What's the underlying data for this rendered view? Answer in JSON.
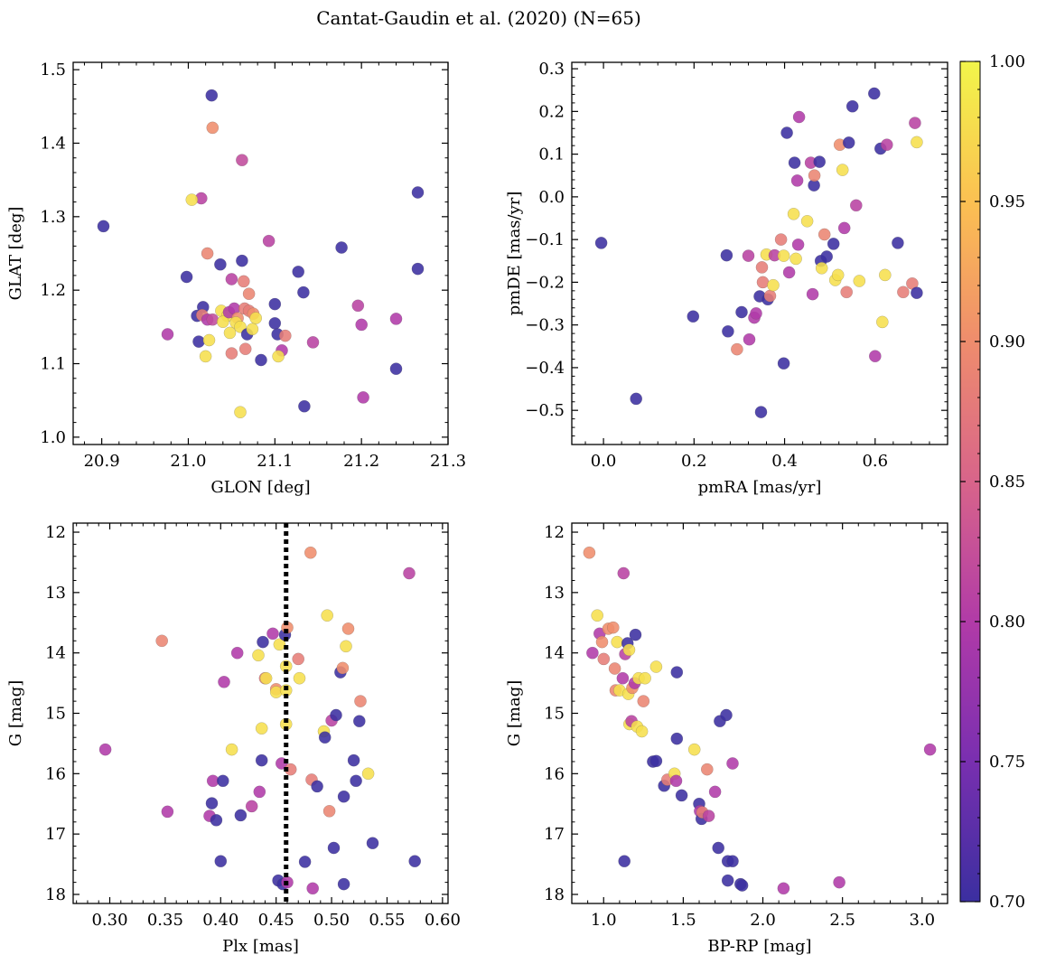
{
  "title": "Cantat-Gaudin et al. (2020) (N=65)",
  "colorbar": {
    "min": 0.7,
    "max": 1.0,
    "ticks": [
      "0.70",
      "0.75",
      "0.80",
      "0.85",
      "0.90",
      "0.95",
      "1.00"
    ],
    "colormap": [
      "#3b2fa0",
      "#7a2fb0",
      "#b03aa8",
      "#d8648a",
      "#ef8d6c",
      "#fbbf52",
      "#f2f54a"
    ]
  },
  "chart_data": [
    {
      "type": "scatter",
      "xlabel": "GLON [deg]",
      "ylabel": "GLAT [deg]",
      "xlim": [
        20.867,
        21.3
      ],
      "ylim": [
        0.99,
        1.51
      ],
      "xticks": [
        "20.9",
        "21.0",
        "21.1",
        "21.2",
        "21.3"
      ],
      "yticks": [
        "1.0",
        "1.1",
        "1.2",
        "1.3",
        "1.4",
        "1.5"
      ],
      "points": [
        [
          20.902,
          1.287,
          0.7
        ],
        [
          21.027,
          1.465,
          0.7
        ],
        [
          21.028,
          1.421,
          0.9
        ],
        [
          21.062,
          1.377,
          0.82
        ],
        [
          21.015,
          1.325,
          0.81
        ],
        [
          21.004,
          1.323,
          0.98
        ],
        [
          20.998,
          1.218,
          0.7
        ],
        [
          21.037,
          1.235,
          0.7
        ],
        [
          21.062,
          1.24,
          0.7
        ],
        [
          21.022,
          1.25,
          0.89
        ],
        [
          21.093,
          1.267,
          0.81
        ],
        [
          21.05,
          1.215,
          0.81
        ],
        [
          21.064,
          1.212,
          0.88
        ],
        [
          21.017,
          1.177,
          0.7
        ],
        [
          21.07,
          1.195,
          0.89
        ],
        [
          21.127,
          1.225,
          0.7
        ],
        [
          21.133,
          1.197,
          0.7
        ],
        [
          21.1,
          1.181,
          0.7
        ],
        [
          21.01,
          1.165,
          0.7
        ],
        [
          21.016,
          1.166,
          0.88
        ],
        [
          21.022,
          1.16,
          0.8
        ],
        [
          21.028,
          1.16,
          0.82
        ],
        [
          21.038,
          1.172,
          0.98
        ],
        [
          21.045,
          1.165,
          0.98
        ],
        [
          21.04,
          1.157,
          0.98
        ],
        [
          21.047,
          1.17,
          0.8
        ],
        [
          21.053,
          1.175,
          0.8
        ],
        [
          21.057,
          1.162,
          0.9
        ],
        [
          21.055,
          1.156,
          0.98
        ],
        [
          21.06,
          1.15,
          0.98
        ],
        [
          21.065,
          1.175,
          0.88
        ],
        [
          21.07,
          1.172,
          0.88
        ],
        [
          21.075,
          1.168,
          0.9
        ],
        [
          21.078,
          1.162,
          0.98
        ],
        [
          21.068,
          1.14,
          0.7
        ],
        [
          21.074,
          1.147,
          0.98
        ],
        [
          21.048,
          1.142,
          0.98
        ],
        [
          21.012,
          1.13,
          0.7
        ],
        [
          21.024,
          1.132,
          0.98
        ],
        [
          21.02,
          1.11,
          0.98
        ],
        [
          21.05,
          1.114,
          0.88
        ],
        [
          21.066,
          1.12,
          0.88
        ],
        [
          21.084,
          1.105,
          0.7
        ],
        [
          21.1,
          1.155,
          0.7
        ],
        [
          21.103,
          1.14,
          0.7
        ],
        [
          21.108,
          1.118,
          0.8
        ],
        [
          21.112,
          1.138,
          0.88
        ],
        [
          21.104,
          1.11,
          0.98
        ],
        [
          21.144,
          1.129,
          0.81
        ],
        [
          21.134,
          1.042,
          0.7
        ],
        [
          21.06,
          1.034,
          0.98
        ],
        [
          20.976,
          1.14,
          0.8
        ],
        [
          21.177,
          1.258,
          0.7
        ],
        [
          21.196,
          1.179,
          0.81
        ],
        [
          21.2,
          1.153,
          0.8
        ],
        [
          21.202,
          1.054,
          0.8
        ],
        [
          21.24,
          1.161,
          0.8
        ],
        [
          21.24,
          1.093,
          0.7
        ],
        [
          21.265,
          1.333,
          0.7
        ],
        [
          21.265,
          1.229,
          0.7
        ]
      ]
    },
    {
      "type": "scatter",
      "xlabel": "pmRA [mas/yr]",
      "ylabel": "pmDE [mas/yr]",
      "xlim": [
        -0.07,
        0.76
      ],
      "ylim": [
        -0.58,
        0.315
      ],
      "xticks": [
        "0.0",
        "0.2",
        "0.4",
        "0.6"
      ],
      "yticks": [
        "−0.5",
        "−0.4",
        "−0.3",
        "−0.2",
        "−0.1",
        "0.0",
        "0.1",
        "0.2",
        "0.3"
      ],
      "points": [
        [
          -0.005,
          -0.108,
          0.7
        ],
        [
          0.072,
          -0.473,
          0.7
        ],
        [
          0.198,
          -0.28,
          0.7
        ],
        [
          0.272,
          -0.137,
          0.7
        ],
        [
          0.275,
          -0.315,
          0.7
        ],
        [
          0.295,
          -0.357,
          0.89
        ],
        [
          0.305,
          -0.27,
          0.7
        ],
        [
          0.32,
          -0.138,
          0.81
        ],
        [
          0.322,
          -0.334,
          0.8
        ],
        [
          0.333,
          -0.283,
          0.8
        ],
        [
          0.337,
          -0.273,
          0.8
        ],
        [
          0.348,
          -0.504,
          0.7
        ],
        [
          0.345,
          -0.233,
          0.7
        ],
        [
          0.35,
          -0.165,
          0.88
        ],
        [
          0.352,
          -0.2,
          0.88
        ],
        [
          0.36,
          -0.135,
          0.98
        ],
        [
          0.363,
          -0.24,
          0.7
        ],
        [
          0.368,
          -0.232,
          0.88
        ],
        [
          0.375,
          -0.207,
          0.98
        ],
        [
          0.378,
          -0.137,
          0.81
        ],
        [
          0.392,
          -0.1,
          0.88
        ],
        [
          0.398,
          -0.39,
          0.7
        ],
        [
          0.398,
          -0.138,
          0.98
        ],
        [
          0.405,
          0.15,
          0.7
        ],
        [
          0.41,
          -0.177,
          0.8
        ],
        [
          0.42,
          -0.04,
          0.98
        ],
        [
          0.422,
          0.08,
          0.7
        ],
        [
          0.425,
          -0.145,
          0.98
        ],
        [
          0.428,
          0.038,
          0.8
        ],
        [
          0.43,
          -0.112,
          0.8
        ],
        [
          0.432,
          0.187,
          0.8
        ],
        [
          0.45,
          -0.057,
          0.98
        ],
        [
          0.458,
          0.08,
          0.81
        ],
        [
          0.462,
          -0.228,
          0.8
        ],
        [
          0.465,
          0.027,
          0.7
        ],
        [
          0.466,
          0.05,
          0.89
        ],
        [
          0.477,
          0.082,
          0.7
        ],
        [
          0.48,
          -0.15,
          0.7
        ],
        [
          0.482,
          -0.167,
          0.98
        ],
        [
          0.488,
          -0.088,
          0.89
        ],
        [
          0.493,
          -0.14,
          0.7
        ],
        [
          0.508,
          -0.11,
          0.7
        ],
        [
          0.512,
          -0.195,
          0.98
        ],
        [
          0.518,
          -0.183,
          0.98
        ],
        [
          0.522,
          0.122,
          0.9
        ],
        [
          0.528,
          0.063,
          0.98
        ],
        [
          0.532,
          -0.073,
          0.8
        ],
        [
          0.537,
          -0.223,
          0.88
        ],
        [
          0.542,
          0.127,
          0.7
        ],
        [
          0.55,
          0.212,
          0.7
        ],
        [
          0.558,
          -0.02,
          0.81
        ],
        [
          0.565,
          -0.197,
          0.98
        ],
        [
          0.598,
          0.242,
          0.7
        ],
        [
          0.6,
          -0.373,
          0.8
        ],
        [
          0.612,
          0.113,
          0.7
        ],
        [
          0.616,
          -0.293,
          0.98
        ],
        [
          0.622,
          -0.183,
          0.98
        ],
        [
          0.626,
          0.122,
          0.81
        ],
        [
          0.65,
          -0.108,
          0.7
        ],
        [
          0.662,
          -0.223,
          0.88
        ],
        [
          0.682,
          -0.203,
          0.88
        ],
        [
          0.688,
          0.173,
          0.81
        ],
        [
          0.692,
          -0.225,
          0.7
        ],
        [
          0.692,
          0.128,
          0.98
        ]
      ]
    },
    {
      "type": "scatter",
      "xlabel": "Plx [mas]",
      "ylabel": "G [mag]",
      "xlim": [
        0.267,
        0.605
      ],
      "ylim": [
        18.15,
        11.85
      ],
      "xticks": [
        "0.30",
        "0.35",
        "0.40",
        "0.45",
        "0.50",
        "0.55",
        "0.60"
      ],
      "yticks": [
        "12",
        "13",
        "14",
        "15",
        "16",
        "17",
        "18"
      ],
      "vline": 0.459,
      "points": [
        [
          0.296,
          15.6,
          0.8
        ],
        [
          0.347,
          13.8,
          0.89
        ],
        [
          0.352,
          16.63,
          0.8
        ],
        [
          0.39,
          16.7,
          0.8
        ],
        [
          0.392,
          16.49,
          0.7
        ],
        [
          0.393,
          16.12,
          0.8
        ],
        [
          0.396,
          16.77,
          0.7
        ],
        [
          0.4,
          17.45,
          0.7
        ],
        [
          0.402,
          16.12,
          0.7
        ],
        [
          0.403,
          14.48,
          0.8
        ],
        [
          0.41,
          15.6,
          0.98
        ],
        [
          0.415,
          14.0,
          0.8
        ],
        [
          0.418,
          16.69,
          0.7
        ],
        [
          0.428,
          16.54,
          0.81
        ],
        [
          0.434,
          14.04,
          0.98
        ],
        [
          0.435,
          16.3,
          0.8
        ],
        [
          0.437,
          15.25,
          0.98
        ],
        [
          0.437,
          15.78,
          0.7
        ],
        [
          0.438,
          13.82,
          0.7
        ],
        [
          0.44,
          14.42,
          0.88
        ],
        [
          0.441,
          14.42,
          0.98
        ],
        [
          0.447,
          13.68,
          0.8
        ],
        [
          0.45,
          14.6,
          0.9
        ],
        [
          0.45,
          14.65,
          0.98
        ],
        [
          0.452,
          17.77,
          0.7
        ],
        [
          0.453,
          13.86,
          0.98
        ],
        [
          0.455,
          15.83,
          0.8
        ],
        [
          0.456,
          17.83,
          0.7
        ],
        [
          0.458,
          13.7,
          0.7
        ],
        [
          0.459,
          14.22,
          0.98
        ],
        [
          0.459,
          14.62,
          0.98
        ],
        [
          0.459,
          15.18,
          0.98
        ],
        [
          0.46,
          13.58,
          0.9
        ],
        [
          0.46,
          17.8,
          0.8
        ],
        [
          0.463,
          15.93,
          0.88
        ],
        [
          0.47,
          14.1,
          0.88
        ],
        [
          0.471,
          14.42,
          0.98
        ],
        [
          0.476,
          17.46,
          0.7
        ],
        [
          0.481,
          12.34,
          0.9
        ],
        [
          0.482,
          16.1,
          0.88
        ],
        [
          0.483,
          17.9,
          0.8
        ],
        [
          0.487,
          16.21,
          0.7
        ],
        [
          0.493,
          15.3,
          0.98
        ],
        [
          0.494,
          15.4,
          0.7
        ],
        [
          0.496,
          13.38,
          0.98
        ],
        [
          0.498,
          16.62,
          0.89
        ],
        [
          0.5,
          15.12,
          0.81
        ],
        [
          0.502,
          17.23,
          0.7
        ],
        [
          0.504,
          15.03,
          0.7
        ],
        [
          0.508,
          14.32,
          0.7
        ],
        [
          0.51,
          14.25,
          0.9
        ],
        [
          0.511,
          16.38,
          0.7
        ],
        [
          0.511,
          17.83,
          0.7
        ],
        [
          0.513,
          13.89,
          0.98
        ],
        [
          0.515,
          13.6,
          0.9
        ],
        [
          0.52,
          15.78,
          0.7
        ],
        [
          0.522,
          16.12,
          0.7
        ],
        [
          0.525,
          15.13,
          0.7
        ],
        [
          0.526,
          14.8,
          0.89
        ],
        [
          0.533,
          16.0,
          0.98
        ],
        [
          0.537,
          17.15,
          0.7
        ],
        [
          0.57,
          12.68,
          0.81
        ],
        [
          0.575,
          17.45,
          0.7
        ]
      ]
    },
    {
      "type": "scatter",
      "xlabel": "BP-RP [mag]",
      "ylabel": "G [mag]",
      "xlim": [
        0.8,
        3.16
      ],
      "ylim": [
        18.15,
        11.85
      ],
      "xticks": [
        "1.0",
        "1.5",
        "2.0",
        "2.5",
        "3.0"
      ],
      "yticks": [
        "12",
        "13",
        "14",
        "15",
        "16",
        "17",
        "18"
      ],
      "points": [
        [
          0.91,
          12.34,
          0.9
        ],
        [
          0.93,
          14.0,
          0.8
        ],
        [
          0.96,
          13.38,
          0.98
        ],
        [
          0.975,
          13.68,
          0.8
        ],
        [
          0.99,
          13.82,
          0.9
        ],
        [
          1.0,
          14.1,
          0.88
        ],
        [
          1.03,
          13.6,
          0.9
        ],
        [
          1.06,
          13.58,
          0.9
        ],
        [
          1.07,
          14.26,
          0.89
        ],
        [
          1.075,
          14.62,
          0.89
        ],
        [
          1.085,
          13.82,
          0.98
        ],
        [
          1.1,
          14.62,
          0.98
        ],
        [
          1.12,
          14.42,
          0.8
        ],
        [
          1.125,
          12.68,
          0.81
        ],
        [
          1.13,
          17.45,
          0.7
        ],
        [
          1.135,
          14.02,
          0.81
        ],
        [
          1.15,
          13.84,
          0.7
        ],
        [
          1.155,
          14.68,
          0.98
        ],
        [
          1.16,
          13.95,
          0.98
        ],
        [
          1.162,
          15.18,
          0.98
        ],
        [
          1.175,
          15.13,
          0.81
        ],
        [
          1.18,
          14.58,
          0.9
        ],
        [
          1.195,
          14.5,
          0.8
        ],
        [
          1.2,
          13.7,
          0.7
        ],
        [
          1.21,
          15.22,
          0.98
        ],
        [
          1.22,
          14.42,
          0.98
        ],
        [
          1.24,
          15.3,
          0.98
        ],
        [
          1.25,
          14.8,
          0.89
        ],
        [
          1.26,
          14.42,
          0.98
        ],
        [
          1.31,
          15.8,
          0.7
        ],
        [
          1.33,
          15.79,
          0.7
        ],
        [
          1.33,
          14.23,
          0.98
        ],
        [
          1.38,
          16.2,
          0.7
        ],
        [
          1.4,
          16.1,
          0.88
        ],
        [
          1.445,
          16.0,
          0.98
        ],
        [
          1.455,
          16.12,
          0.8
        ],
        [
          1.46,
          15.42,
          0.7
        ],
        [
          1.46,
          14.32,
          0.7
        ],
        [
          1.49,
          16.36,
          0.7
        ],
        [
          1.57,
          15.6,
          0.98
        ],
        [
          1.6,
          16.5,
          0.7
        ],
        [
          1.605,
          16.62,
          0.8
        ],
        [
          1.615,
          16.75,
          0.7
        ],
        [
          1.62,
          16.64,
          0.88
        ],
        [
          1.65,
          15.93,
          0.89
        ],
        [
          1.66,
          16.7,
          0.81
        ],
        [
          1.7,
          16.3,
          0.8
        ],
        [
          1.72,
          17.23,
          0.7
        ],
        [
          1.73,
          15.13,
          0.7
        ],
        [
          1.77,
          15.03,
          0.7
        ],
        [
          1.78,
          17.45,
          0.7
        ],
        [
          1.78,
          17.77,
          0.7
        ],
        [
          1.81,
          15.83,
          0.8
        ],
        [
          1.81,
          17.45,
          0.7
        ],
        [
          1.86,
          17.83,
          0.7
        ],
        [
          1.87,
          17.85,
          0.7
        ],
        [
          2.13,
          17.9,
          0.8
        ],
        [
          2.48,
          17.8,
          0.8
        ],
        [
          3.05,
          15.6,
          0.8
        ]
      ]
    }
  ]
}
